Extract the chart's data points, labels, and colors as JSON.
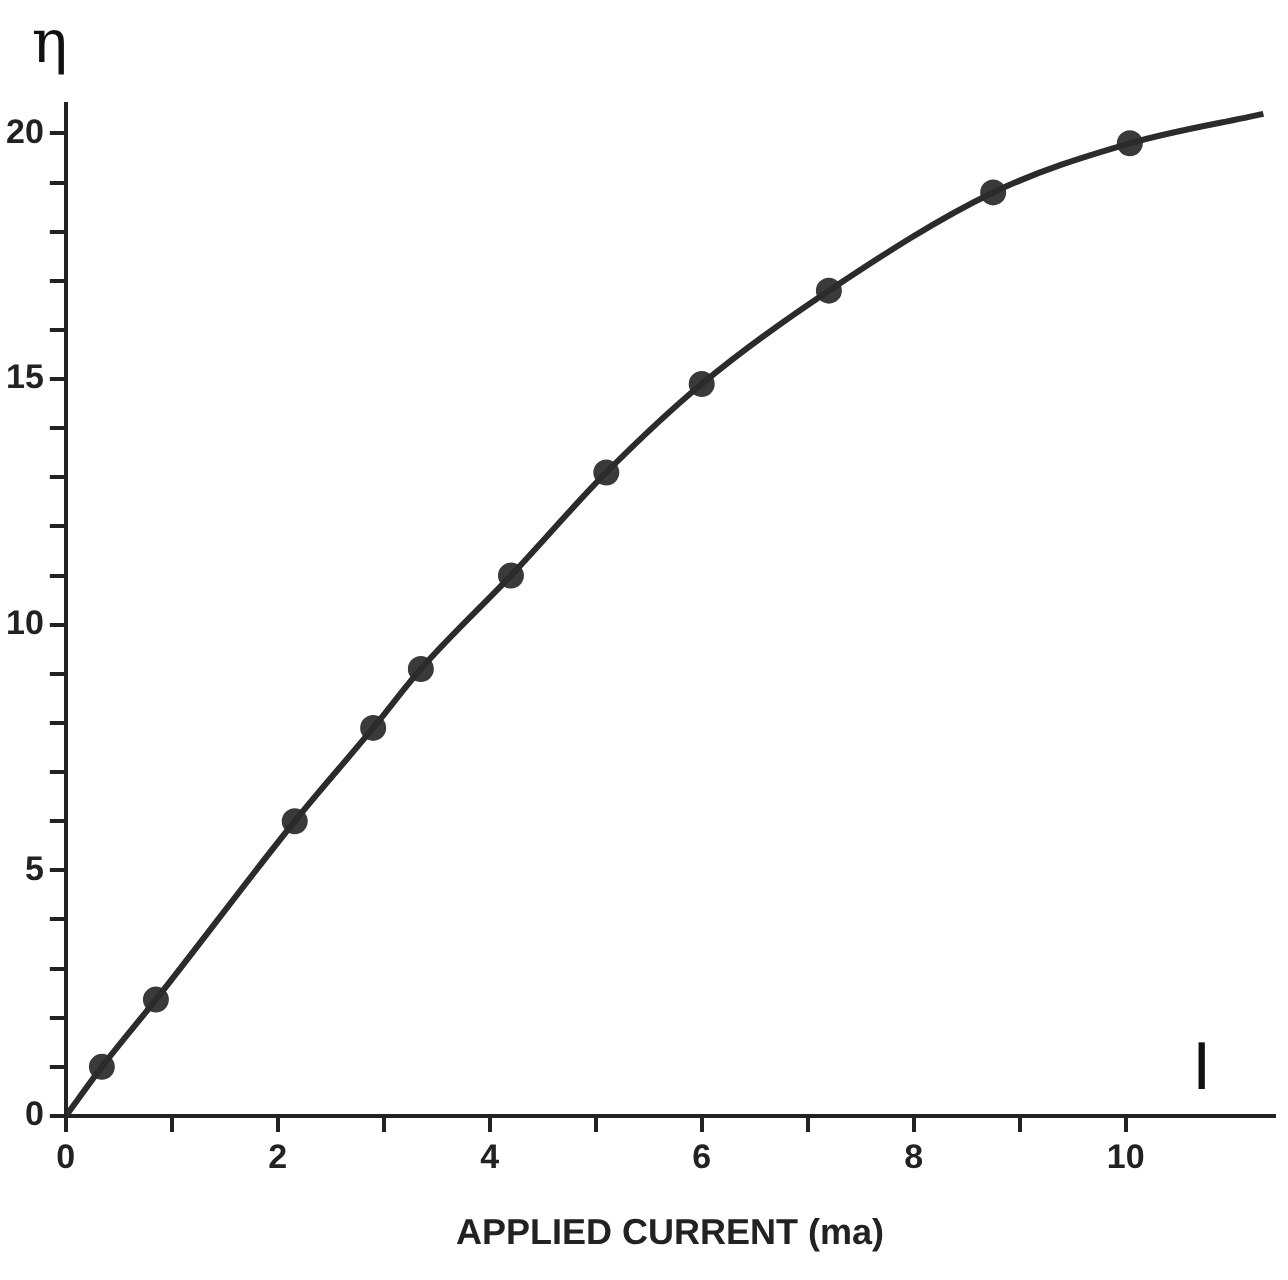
{
  "chart_data": {
    "type": "scatter",
    "xlabel": "APPLIED CURRENT (ma)",
    "ylabel": "η",
    "annotations": [
      "I"
    ],
    "xlim": [
      0,
      11.4
    ],
    "ylim": [
      0,
      20.6
    ],
    "xticks": [
      0,
      {
        "value": 1,
        "label": null
      },
      2,
      {
        "value": 3,
        "label": null
      },
      4,
      {
        "value": 5,
        "label": null
      },
      6,
      {
        "value": 7,
        "label": null
      },
      8,
      {
        "value": 9,
        "label": null
      },
      10
    ],
    "yticks": [
      0,
      {
        "value": 1,
        "label": null
      },
      {
        "value": 2,
        "label": null
      },
      {
        "value": 3,
        "label": null
      },
      {
        "value": 4,
        "label": null
      },
      5,
      {
        "value": 6,
        "label": null
      },
      {
        "value": 7,
        "label": null
      },
      {
        "value": 8,
        "label": null
      },
      {
        "value": 9,
        "label": null
      },
      10,
      {
        "value": 11,
        "label": null
      },
      {
        "value": 12,
        "label": null
      },
      {
        "value": 13,
        "label": null
      },
      {
        "value": 14,
        "label": null
      },
      15,
      {
        "value": 16,
        "label": null
      },
      {
        "value": 17,
        "label": null
      },
      {
        "value": 18,
        "label": null
      },
      {
        "value": 19,
        "label": null
      },
      20
    ],
    "grid": false,
    "legend": false,
    "series": [
      {
        "type": "line",
        "color": "#2b2b2b",
        "marker": "none",
        "x": [
          0,
          0.34,
          0.85,
          2.16,
          2.9,
          3.35,
          4.2,
          5.1,
          6.0,
          7.2,
          8.75,
          10.04,
          11.3
        ],
        "values": [
          0,
          1.0,
          2.37,
          6.0,
          7.9,
          9.1,
          11.0,
          13.1,
          14.9,
          16.8,
          18.8,
          19.8,
          20.4
        ]
      },
      {
        "color": "#3a3a3a",
        "marker": "circle",
        "x": [
          0.34,
          0.85,
          2.16,
          2.9,
          3.35,
          4.2,
          5.1,
          6.0,
          7.2,
          8.75,
          10.04
        ],
        "values": [
          1.0,
          2.37,
          6.0,
          7.9,
          9.1,
          11.0,
          13.1,
          14.9,
          16.8,
          18.8,
          19.8
        ]
      }
    ]
  }
}
